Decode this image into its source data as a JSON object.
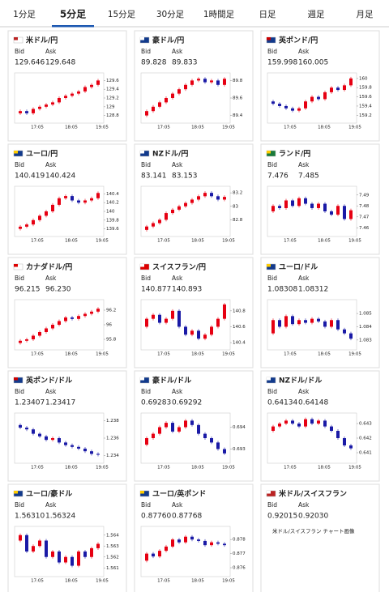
{
  "tabs": [
    "1分足",
    "5分足",
    "15分足",
    "30分足",
    "1時間足",
    "日足",
    "週足",
    "月足"
  ],
  "bid_label": "Bid",
  "ask_label": "Ask",
  "time_labels": [
    "17:05",
    "18:05",
    "19:05"
  ],
  "cards": [
    {
      "title": "米ドル/円",
      "bid": "129.646",
      "ask": "129.648",
      "chart": {
        "ylim": [
          128.7,
          129.7
        ],
        "yticks": [
          128.8,
          129,
          129.2,
          129.4,
          129.6
        ],
        "closes": [
          128.85,
          128.9,
          128.85,
          128.95,
          129.0,
          129.05,
          129.1,
          129.2,
          129.25,
          129.3,
          129.35,
          129.45,
          129.5,
          129.6
        ]
      }
    },
    {
      "title": "豪ドル/円",
      "bid": "89.828",
      "ask": "89.833",
      "chart": {
        "ylim": [
          89.35,
          89.85
        ],
        "yticks": [
          89.4,
          89.6,
          89.8
        ],
        "closes": [
          89.4,
          89.45,
          89.5,
          89.55,
          89.6,
          89.65,
          89.7,
          89.75,
          89.8,
          89.82,
          89.78,
          89.8,
          89.75,
          89.82
        ]
      }
    },
    {
      "title": "英ポンド/円",
      "bid": "159.998",
      "ask": "160.005",
      "chart": {
        "ylim": [
          159.1,
          160.05
        ],
        "yticks": [
          159.2,
          159.4,
          159.6,
          159.8,
          160
        ],
        "closes": [
          159.5,
          159.45,
          159.4,
          159.35,
          159.3,
          159.35,
          159.5,
          159.6,
          159.55,
          159.7,
          159.8,
          159.75,
          159.85,
          160.0
        ]
      }
    },
    {
      "title": "ユーロ/円",
      "bid": "140.419",
      "ask": "140.424",
      "chart": {
        "ylim": [
          139.5,
          140.5
        ],
        "yticks": [
          139.6,
          139.8,
          140,
          140.2,
          140.4
        ],
        "closes": [
          139.6,
          139.65,
          139.7,
          139.8,
          139.9,
          140.0,
          140.15,
          140.3,
          140.35,
          140.25,
          140.2,
          140.25,
          140.3,
          140.42
        ]
      }
    },
    {
      "title": "NZドル/円",
      "bid": "83.141",
      "ask": "83.153",
      "chart": {
        "ylim": [
          82.6,
          83.25
        ],
        "yticks": [
          82.8,
          83,
          83.2
        ],
        "closes": [
          82.65,
          82.7,
          82.75,
          82.8,
          82.9,
          82.95,
          83.0,
          83.05,
          83.1,
          83.15,
          83.2,
          83.15,
          83.1,
          83.14
        ]
      }
    },
    {
      "title": "ランド/円",
      "bid": "7.476",
      "ask": "7.485",
      "chart": {
        "ylim": [
          7.455,
          7.495
        ],
        "yticks": [
          7.46,
          7.47,
          7.48,
          7.49
        ],
        "closes": [
          7.475,
          7.48,
          7.478,
          7.485,
          7.48,
          7.487,
          7.482,
          7.478,
          7.482,
          7.475,
          7.472,
          7.48,
          7.468,
          7.476
        ]
      }
    },
    {
      "title": "カナダドル/円",
      "bid": "96.215",
      "ask": "96.230",
      "chart": {
        "ylim": [
          95.7,
          96.3
        ],
        "yticks": [
          95.8,
          96,
          96.2
        ],
        "closes": [
          95.75,
          95.78,
          95.8,
          95.85,
          95.9,
          95.95,
          96.0,
          96.05,
          96.1,
          96.08,
          96.12,
          96.15,
          96.18,
          96.22
        ]
      }
    },
    {
      "title": "スイスフラン/円",
      "bid": "140.877",
      "ask": "140.893",
      "chart": {
        "ylim": [
          140.35,
          140.9
        ],
        "yticks": [
          140.4,
          140.6,
          140.8
        ],
        "closes": [
          140.6,
          140.7,
          140.75,
          140.65,
          140.7,
          140.8,
          140.6,
          140.5,
          140.55,
          140.45,
          140.5,
          140.6,
          140.7,
          140.88
        ]
      }
    },
    {
      "title": "ユーロ/ドル",
      "bid": "1.08308",
      "ask": "1.08312",
      "chart": {
        "ylim": [
          1.0825,
          1.0858
        ],
        "yticks": [
          1.083,
          1.084,
          1.085
        ],
        "closes": [
          1.0835,
          1.0845,
          1.084,
          1.0848,
          1.0842,
          1.0845,
          1.0843,
          1.0846,
          1.0844,
          1.084,
          1.0845,
          1.0838,
          1.0835,
          1.0831
        ]
      }
    },
    {
      "title": "英ポンド/ドル",
      "bid": "1.23407",
      "ask": "1.23417",
      "chart": {
        "ylim": [
          1.2335,
          1.2385
        ],
        "yticks": [
          1.234,
          1.236,
          1.238
        ],
        "closes": [
          1.2375,
          1.2372,
          1.237,
          1.2365,
          1.2362,
          1.2358,
          1.236,
          1.2355,
          1.2352,
          1.235,
          1.2348,
          1.2345,
          1.2342,
          1.2341
        ]
      }
    },
    {
      "title": "豪ドル/ドル",
      "bid": "0.69283",
      "ask": "0.69292",
      "chart": {
        "ylim": [
          0.6925,
          0.6945
        ],
        "yticks": [
          0.693,
          0.694
        ],
        "closes": [
          0.6932,
          0.6935,
          0.6937,
          0.694,
          0.6942,
          0.6938,
          0.694,
          0.6943,
          0.6941,
          0.6937,
          0.6935,
          0.6933,
          0.693,
          0.6928
        ]
      }
    },
    {
      "title": "NZドル/ドル",
      "bid": "0.64134",
      "ask": "0.64148",
      "chart": {
        "ylim": [
          0.6405,
          0.6435
        ],
        "yticks": [
          0.641,
          0.642,
          0.643
        ],
        "closes": [
          0.6425,
          0.6428,
          0.643,
          0.6432,
          0.643,
          0.6428,
          0.6433,
          0.643,
          0.6432,
          0.6428,
          0.6425,
          0.642,
          0.6415,
          0.6413
        ]
      }
    },
    {
      "title": "ユーロ/豪ドル",
      "bid": "1.56310",
      "ask": "1.56324",
      "chart": {
        "ylim": [
          1.5605,
          1.5645
        ],
        "yticks": [
          1.561,
          1.562,
          1.563,
          1.564
        ],
        "closes": [
          1.5635,
          1.564,
          1.5625,
          1.563,
          1.5635,
          1.562,
          1.5625,
          1.5615,
          1.562,
          1.5612,
          1.5625,
          1.562,
          1.5628,
          1.5632
        ]
      }
    },
    {
      "title": "ユーロ/英ポンド",
      "bid": "0.87760",
      "ask": "0.87768",
      "chart": {
        "ylim": [
          0.8756,
          0.8787
        ],
        "yticks": [
          0.876,
          0.877,
          0.878
        ],
        "closes": [
          0.8765,
          0.877,
          0.8768,
          0.8772,
          0.8775,
          0.878,
          0.8778,
          0.8782,
          0.878,
          0.8779,
          0.8776,
          0.8778,
          0.8777,
          0.8776
        ]
      }
    },
    {
      "title": "米ドル/スイスフラン",
      "bid": "0.92015",
      "ask": "0.92030",
      "chart_alt": "米ドル/スイスフラン チャート画像"
    }
  ]
}
